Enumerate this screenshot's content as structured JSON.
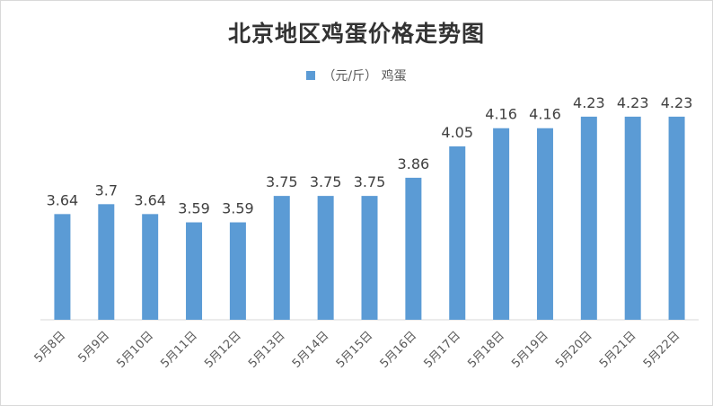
{
  "chart_data": {
    "type": "bar",
    "title": "北京地区鸡蛋价格走势图",
    "series": [
      {
        "name": "（元/斤） 鸡蛋",
        "values": [
          3.64,
          3.7,
          3.64,
          3.59,
          3.59,
          3.75,
          3.75,
          3.75,
          3.86,
          4.05,
          4.16,
          4.16,
          4.23,
          4.23,
          4.23
        ],
        "labels": [
          "3.64",
          "3.7",
          "3.64",
          "3.59",
          "3.59",
          "3.75",
          "3.75",
          "3.75",
          "3.86",
          "4.05",
          "4.16",
          "4.16",
          "4.23",
          "4.23",
          "4.23"
        ]
      }
    ],
    "categories": [
      "5月8日",
      "5月9日",
      "5月10日",
      "5月11日",
      "5月12日",
      "5月13日",
      "5月14日",
      "5月15日",
      "5月16日",
      "5月17日",
      "5月18日",
      "5月19日",
      "5月20日",
      "5月21日",
      "5月22日"
    ],
    "bar_color": "#5b9bd5",
    "ylim": [
      3.0,
      4.3
    ],
    "grid": false,
    "legend_position": "top-center"
  }
}
